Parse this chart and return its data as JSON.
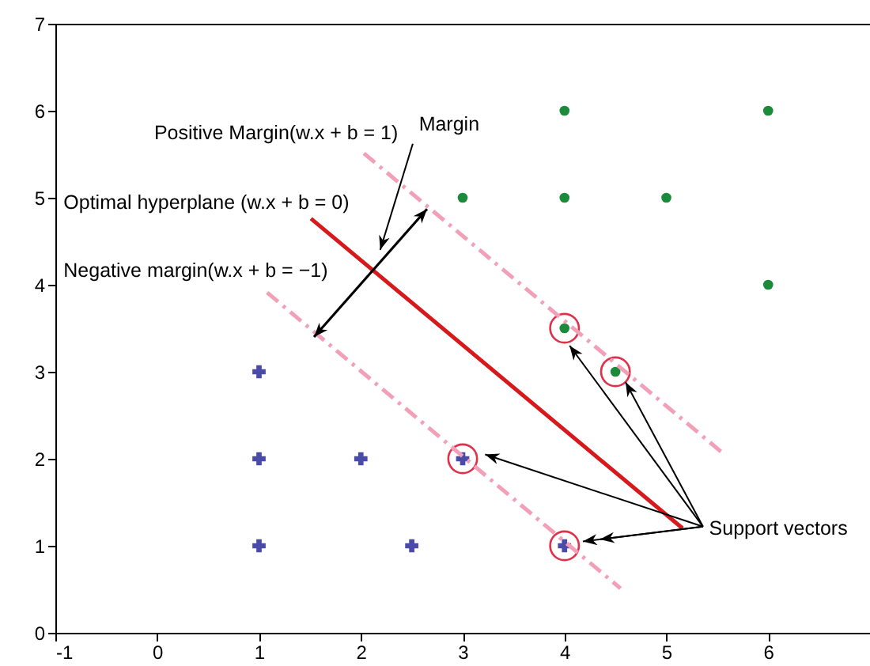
{
  "chart_data": {
    "type": "scatter",
    "xlim": [
      -1,
      7
    ],
    "ylim": [
      0,
      7
    ],
    "xticks": [
      -1,
      0,
      1,
      2,
      3,
      4,
      5,
      6,
      {
        "value": 7,
        "label": null
      }
    ],
    "yticks": [
      0,
      1,
      2,
      3,
      4,
      5,
      6,
      7
    ],
    "grid": false,
    "series": [
      {
        "marker": "circle",
        "color": "#1b8a3a",
        "x": [
          4,
          6,
          3,
          4,
          5,
          6,
          4,
          4.5
        ],
        "values": [
          6,
          6,
          5,
          5,
          5,
          4,
          3.5,
          3
        ]
      },
      {
        "marker": "cross",
        "color": "#4a4aa8",
        "x": [
          1,
          1,
          2,
          1,
          2.5,
          3,
          4
        ],
        "values": [
          3,
          2,
          2,
          1,
          1,
          2,
          1
        ]
      },
      {
        "marker": "circle",
        "color": "#e0304a",
        "x": [
          4,
          4.5,
          3,
          4
        ],
        "values": [
          3.5,
          3,
          2,
          1
        ]
      },
      {
        "type": "line",
        "line_style": "solid",
        "color": "#d7191c",
        "x": [
          1.51,
          5.16
        ],
        "values": [
          4.76,
          1.2
        ]
      },
      {
        "type": "line",
        "line_style": "dashed",
        "color": "#f2a0b8",
        "x": [
          2.03,
          5.58
        ],
        "values": [
          5.51,
          2.04
        ]
      },
      {
        "type": "line",
        "line_style": "dashed",
        "color": "#f2a0b8",
        "x": [
          1.08,
          4.55
        ],
        "values": [
          3.91,
          0.51
        ]
      }
    ],
    "annotations": [
      "Positive Margin(w.x + b = 1)",
      "Optimal hyperplane (w.x + b = 0)",
      "Negative margin(w.x + b = −1)",
      "Margin",
      {
        "text": "Support vectors",
        "x": 4.18,
        "y": 1.05
      }
    ]
  }
}
